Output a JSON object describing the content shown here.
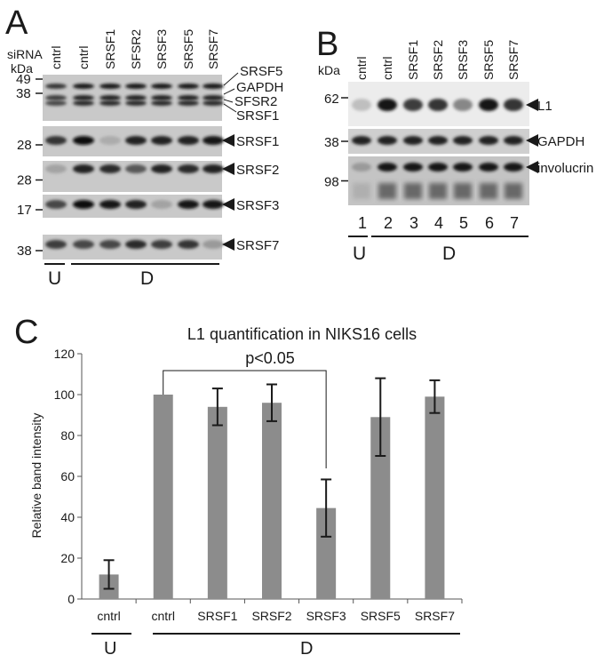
{
  "panelA": {
    "letter": "A",
    "sirna_label": "siRNA",
    "kda_label": "kDa",
    "lanes": [
      "cntrl",
      "cntrl",
      "SRSF1",
      "SFSR2",
      "SRSF3",
      "SRSF5",
      "SRSF7"
    ],
    "blots": [
      {
        "markers": [
          "49",
          "38"
        ],
        "right_labels": [
          "SRSF5",
          "GAPDH",
          "SFSR2",
          "SRSF1"
        ],
        "band_intensity": [
          0.8,
          0.95,
          0.95,
          0.95,
          0.95,
          0.95,
          0.95
        ]
      },
      {
        "markers": [
          "28"
        ],
        "right_labels": [
          "SRSF1"
        ],
        "band_intensity": [
          0.8,
          1.0,
          0.15,
          0.9,
          0.9,
          0.9,
          0.95
        ]
      },
      {
        "markers": [
          "28"
        ],
        "right_labels": [
          "SRSF2"
        ],
        "band_intensity": [
          0.2,
          0.9,
          0.85,
          0.6,
          0.9,
          0.85,
          0.9
        ]
      },
      {
        "markers": [
          "17"
        ],
        "right_labels": [
          "SRSF3"
        ],
        "band_intensity": [
          0.7,
          1.0,
          0.95,
          0.9,
          0.2,
          0.95,
          0.95
        ]
      },
      {
        "markers": [
          "38"
        ],
        "right_labels": [
          "SRSF7"
        ],
        "band_intensity": [
          0.75,
          0.7,
          0.7,
          0.85,
          0.75,
          0.8,
          0.25
        ]
      }
    ],
    "group_u": "U",
    "group_d": "D"
  },
  "panelB": {
    "letter": "B",
    "kda_label": "kDa",
    "lanes": [
      "cntrl",
      "cntrl",
      "SRSF1",
      "SRSF2",
      "SRSF3",
      "SRSF5",
      "SRSF7"
    ],
    "lane_numbers": [
      "1",
      "2",
      "3",
      "4",
      "5",
      "6",
      "7"
    ],
    "blots": [
      {
        "markers": [
          "62"
        ],
        "right_labels": [
          "L1"
        ],
        "band_intensity": [
          0.05,
          0.95,
          0.75,
          0.8,
          0.35,
          0.95,
          0.8
        ]
      },
      {
        "markers": [
          "38"
        ],
        "right_labels": [
          "GAPDH"
        ],
        "band_intensity": [
          0.9,
          0.9,
          0.9,
          0.9,
          0.9,
          0.9,
          0.9
        ]
      },
      {
        "markers": [
          "98"
        ],
        "right_labels": [
          "involucrin"
        ],
        "band_intensity": [
          0.25,
          0.95,
          0.95,
          0.95,
          0.95,
          0.95,
          0.95
        ]
      }
    ],
    "group_u": "U",
    "group_d": "D"
  },
  "panelC": {
    "letter": "C",
    "significance": "p<0.05",
    "group_u": "U",
    "group_d": "D",
    "bar_color": "#8c8c8c"
  },
  "chart_data": {
    "type": "bar",
    "title": "L1 quantification in NIKS16 cells",
    "xlabel": "",
    "ylabel": "Relative band intensity",
    "categories": [
      "cntrl",
      "cntrl",
      "SRSF1",
      "SRSF2",
      "SRSF3",
      "SRSF5",
      "SRSF7"
    ],
    "values": [
      12,
      100,
      94,
      96,
      44.5,
      89,
      99
    ],
    "error": [
      7,
      0,
      9,
      9,
      14,
      19,
      8
    ],
    "yticks": [
      "0",
      "20",
      "40",
      "60",
      "80",
      "100",
      "120"
    ],
    "ylim": [
      0,
      120
    ],
    "grid": false,
    "legend": "none"
  }
}
